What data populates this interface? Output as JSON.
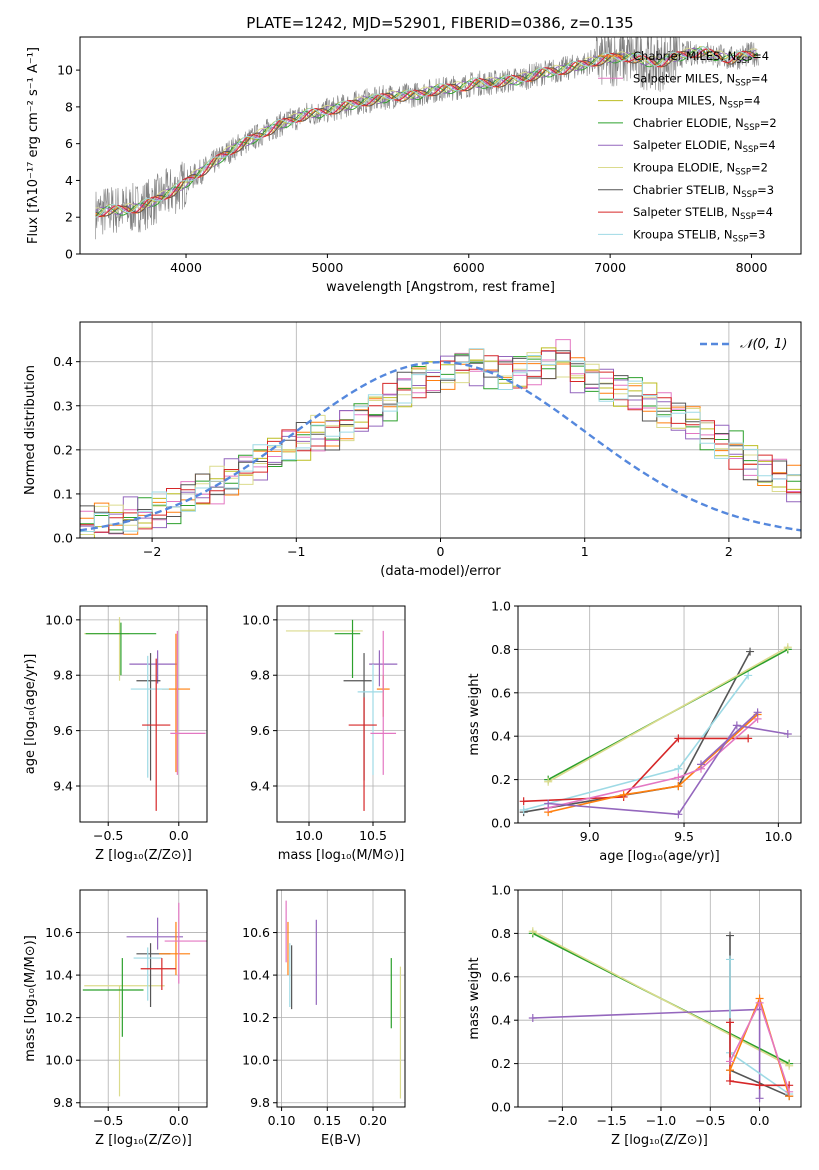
{
  "figure_title": "PLATE=1242, MJD=52901, FIBERID=0386, z=0.135",
  "colors": {
    "chabrier_miles": "#ff7f0e",
    "salpeter_miles": "#e377c2",
    "kroupa_miles": "#bcbd22",
    "chabrier_elodie": "#2ca02c",
    "salpeter_elodie": "#9467bd",
    "kroupa_elodie": "#dbdb8d",
    "chabrier_stelib": "#555555",
    "salpeter_stelib": "#d62728",
    "kroupa_stelib": "#9edae5",
    "data": "#808080",
    "normal": "#5588dd"
  },
  "chart_data": [
    {
      "id": "spectrum",
      "type": "line",
      "title": "PLATE=1242, MJD=52901, FIBERID=0386, z=0.135",
      "xlabel": "wavelength [Angstrom, rest frame]",
      "ylabel": "Flux [fλ10⁻¹⁷ erg cm⁻² s⁻¹ A⁻¹]",
      "xlim": [
        3250,
        8350
      ],
      "ylim": [
        0,
        11.8
      ],
      "xticks": [
        4000,
        5000,
        6000,
        7000,
        8000
      ],
      "yticks": [
        0,
        2,
        4,
        6,
        8,
        10
      ],
      "grid": false,
      "legend_position": "top-right",
      "data_x": [
        3360,
        3450,
        3550,
        3650,
        3750,
        3850,
        3950,
        4050,
        4150,
        4250,
        4350,
        4450,
        4550,
        4650,
        4750,
        4850,
        4950,
        5050,
        5150,
        5250,
        5350,
        5450,
        5550,
        5650,
        5750,
        5850,
        5950,
        6050,
        6150,
        6250,
        6350,
        6450,
        6550,
        6650,
        6750,
        6850,
        6950,
        7050,
        7150,
        7250,
        7350,
        7450,
        7550,
        7650,
        7750,
        7850,
        7950,
        8050
      ],
      "data_y": [
        2.2,
        2.4,
        2.4,
        2.5,
        2.8,
        3.2,
        3.6,
        4.2,
        4.7,
        5.3,
        5.8,
        6.2,
        6.6,
        7.0,
        7.3,
        7.6,
        7.7,
        7.9,
        8.1,
        8.3,
        8.4,
        8.6,
        8.6,
        8.7,
        8.9,
        9.0,
        9.1,
        9.3,
        9.3,
        9.4,
        9.5,
        9.7,
        9.9,
        10.0,
        10.2,
        10.4,
        10.6,
        10.7,
        10.7,
        10.5,
        10.4,
        10.7,
        10.9,
        11.0,
        10.8,
        10.6,
        10.8,
        10.9
      ],
      "series": [
        {
          "name": "Chabrier MILES, N_SSP=4",
          "label_main": "Chabrier MILES, N",
          "label_sub": "SSP",
          "label_end": "=4",
          "color_key": "chabrier_miles"
        },
        {
          "name": "Salpeter MILES, N_SSP=4",
          "label_main": "Salpeter MILES, N",
          "label_sub": "SSP",
          "label_end": "=4",
          "color_key": "salpeter_miles"
        },
        {
          "name": "Kroupa MILES, N_SSP=4",
          "label_main": "Kroupa MILES, N",
          "label_sub": "SSP",
          "label_end": "=4",
          "color_key": "kroupa_miles"
        },
        {
          "name": "Chabrier ELODIE, N_SSP=2",
          "label_main": "Chabrier ELODIE, N",
          "label_sub": "SSP",
          "label_end": "=2",
          "color_key": "chabrier_elodie"
        },
        {
          "name": "Salpeter ELODIE, N_SSP=4",
          "label_main": "Salpeter ELODIE, N",
          "label_sub": "SSP",
          "label_end": "=4",
          "color_key": "salpeter_elodie"
        },
        {
          "name": "Kroupa ELODIE, N_SSP=2",
          "label_main": "Kroupa ELODIE, N",
          "label_sub": "SSP",
          "label_end": "=2",
          "color_key": "kroupa_elodie"
        },
        {
          "name": "Chabrier STELIB, N_SSP=3",
          "label_main": "Chabrier STELIB, N",
          "label_sub": "SSP",
          "label_end": "=3",
          "color_key": "chabrier_stelib"
        },
        {
          "name": "Salpeter STELIB, N_SSP=4",
          "label_main": "Salpeter STELIB, N",
          "label_sub": "SSP",
          "label_end": "=4",
          "color_key": "salpeter_stelib"
        },
        {
          "name": "Kroupa STELIB, N_SSP=3",
          "label_main": "Kroupa STELIB, N",
          "label_sub": "SSP",
          "label_end": "=3",
          "color_key": "kroupa_stelib"
        }
      ]
    },
    {
      "id": "residuals",
      "type": "line",
      "xlabel": "(data-model)/error",
      "ylabel": "Normed distribution",
      "xlim": [
        -2.5,
        2.5
      ],
      "ylim": [
        0,
        0.49
      ],
      "xticks": [
        -2,
        -1,
        0,
        1,
        2
      ],
      "yticks": [
        0.0,
        0.1,
        0.2,
        0.3,
        0.4
      ],
      "grid": true,
      "legend_position": "top-right",
      "legend": "𝒩(0, 1)",
      "bin_width": 0.1,
      "bin_start": -2.5,
      "histogram": [
        0.03,
        0.04,
        0.04,
        0.05,
        0.05,
        0.06,
        0.07,
        0.09,
        0.11,
        0.12,
        0.14,
        0.16,
        0.17,
        0.19,
        0.21,
        0.22,
        0.24,
        0.24,
        0.26,
        0.27,
        0.29,
        0.31,
        0.34,
        0.36,
        0.37,
        0.38,
        0.39,
        0.39,
        0.38,
        0.38,
        0.38,
        0.39,
        0.4,
        0.41,
        0.37,
        0.36,
        0.35,
        0.34,
        0.33,
        0.31,
        0.29,
        0.27,
        0.26,
        0.24,
        0.22,
        0.2,
        0.17,
        0.15,
        0.14,
        0.12,
        0.1,
        0.09,
        0.08,
        0.07,
        0.06,
        0.05,
        0.04,
        0.03,
        0.03,
        0.02,
        0.02,
        0.02
      ],
      "normal_mean": 0,
      "normal_sigma": 1
    },
    {
      "id": "age_vs_z",
      "type": "scatter",
      "xlabel": "Z [log₁₀(Z/Z⊙)]",
      "ylabel": "age  [log₁₀(age/yr)]",
      "xlim": [
        -0.7,
        0.2
      ],
      "ylim": [
        9.27,
        10.05
      ],
      "xticks": [
        -0.5,
        0.0
      ],
      "yticks": [
        9.4,
        9.6,
        9.8,
        10.0
      ],
      "grid": true,
      "points": [
        {
          "color_key": "kroupa_elodie",
          "x": -0.42,
          "y": 9.95,
          "xerr": [
            0.25,
            0.07
          ],
          "yerr": [
            0.17,
            0.06
          ]
        },
        {
          "color_key": "chabrier_elodie",
          "x": -0.41,
          "y": 9.95,
          "xerr": [
            0.25,
            0.25
          ],
          "yerr": [
            0.15,
            0.04
          ]
        },
        {
          "color_key": "salpeter_elodie",
          "x": -0.15,
          "y": 9.84,
          "xerr": [
            0.2,
            0.14
          ],
          "yerr": [
            0.07,
            0.05
          ]
        },
        {
          "color_key": "chabrier_stelib",
          "x": -0.2,
          "y": 9.78,
          "xerr": [
            0.1,
            0.07
          ],
          "yerr": [
            0.36,
            0.1
          ]
        },
        {
          "color_key": "chabrier_miles",
          "x": -0.02,
          "y": 9.75,
          "xerr": [
            0.1,
            0.1
          ],
          "yerr": [
            0.3,
            0.2
          ]
        },
        {
          "color_key": "kroupa_stelib",
          "x": -0.22,
          "y": 9.75,
          "xerr": [
            0.12,
            0.15
          ],
          "yerr": [
            0.32,
            0.12
          ]
        },
        {
          "color_key": "salpeter_stelib",
          "x": -0.16,
          "y": 9.62,
          "xerr": [
            0.1,
            0.1
          ],
          "yerr": [
            0.31,
            0.24
          ]
        },
        {
          "color_key": "salpeter_miles",
          "x": -0.01,
          "y": 9.59,
          "xerr": [
            0.05,
            0.2
          ],
          "yerr": [
            0.15,
            0.37
          ]
        }
      ]
    },
    {
      "id": "age_vs_mass",
      "type": "scatter",
      "xlabel": "mass [log₁₀(M/M⊙)]",
      "xlim": [
        9.75,
        10.75
      ],
      "ylim": [
        9.27,
        10.05
      ],
      "xticks": [
        10.0,
        10.5
      ],
      "yticks": [
        9.4,
        9.6,
        9.8,
        10.0
      ],
      "grid": true,
      "points": [
        {
          "color_key": "kroupa_elodie",
          "x": 10.32,
          "y": 9.96,
          "xerr": [
            0.5,
            0.1
          ],
          "yerr": [
            0.0,
            0.0
          ]
        },
        {
          "color_key": "chabrier_elodie",
          "x": 10.34,
          "y": 9.95,
          "xerr": [
            0.14,
            0.06
          ],
          "yerr": [
            0.16,
            0.05
          ]
        },
        {
          "color_key": "salpeter_elodie",
          "x": 10.55,
          "y": 9.84,
          "xerr": [
            0.08,
            0.14
          ],
          "yerr": [
            0.08,
            0.05
          ]
        },
        {
          "color_key": "chabrier_stelib",
          "x": 10.43,
          "y": 9.78,
          "xerr": [
            0.16,
            0.06
          ],
          "yerr": [
            0.36,
            0.1
          ]
        },
        {
          "color_key": "chabrier_miles",
          "x": 10.58,
          "y": 9.75,
          "xerr": [
            0.05,
            0.05
          ],
          "yerr": [
            0.1,
            0.05
          ]
        },
        {
          "color_key": "kroupa_stelib",
          "x": 10.5,
          "y": 9.74,
          "xerr": [
            0.12,
            0.08
          ],
          "yerr": [
            0.3,
            0.1
          ]
        },
        {
          "color_key": "salpeter_stelib",
          "x": 10.43,
          "y": 9.62,
          "xerr": [
            0.12,
            0.1
          ],
          "yerr": [
            0.31,
            0.1
          ]
        },
        {
          "color_key": "salpeter_miles",
          "x": 10.58,
          "y": 9.59,
          "xerr": [
            0.1,
            0.1
          ],
          "yerr": [
            0.15,
            0.37
          ]
        }
      ]
    },
    {
      "id": "massweight_vs_age",
      "type": "line",
      "xlabel": "age  [log₁₀(age/yr)]",
      "ylabel": "mass weight",
      "xlim": [
        8.62,
        10.12
      ],
      "ylim": [
        0,
        1.0
      ],
      "xticks": [
        9.0,
        9.5,
        10.0
      ],
      "yticks": [
        0.0,
        0.2,
        0.4,
        0.6,
        0.8,
        1.0
      ],
      "grid": true,
      "series": [
        {
          "color_key": "chabrier_stelib",
          "x": [
            8.65,
            9.47,
            9.85
          ],
          "y": [
            0.05,
            0.17,
            0.79
          ]
        },
        {
          "color_key": "kroupa_stelib",
          "x": [
            8.65,
            9.47,
            9.84
          ],
          "y": [
            0.06,
            0.25,
            0.68
          ]
        },
        {
          "color_key": "salpeter_stelib",
          "x": [
            8.65,
            9.18,
            9.47,
            9.84
          ],
          "y": [
            0.1,
            0.12,
            0.39,
            0.39
          ]
        },
        {
          "color_key": "chabrier_miles",
          "x": [
            8.78,
            9.18,
            9.47,
            9.89
          ],
          "y": [
            0.05,
            0.13,
            0.17,
            0.5
          ]
        },
        {
          "color_key": "salpeter_miles",
          "x": [
            8.78,
            9.47,
            9.59,
            9.89
          ],
          "y": [
            0.07,
            0.21,
            0.25,
            0.48
          ]
        },
        {
          "color_key": "salpeter_elodie",
          "x": [
            8.78,
            9.47,
            9.78,
            10.05
          ],
          "y": [
            0.09,
            0.04,
            0.45,
            0.41
          ]
        },
        {
          "color_key": "chabrier_elodie",
          "x": [
            8.78,
            10.05
          ],
          "y": [
            0.2,
            0.8
          ]
        },
        {
          "color_key": "kroupa_elodie",
          "x": [
            8.78,
            10.05
          ],
          "y": [
            0.19,
            0.81
          ]
        },
        {
          "color_key": "salpeter_elodie",
          "x": [
            9.59,
            9.89
          ],
          "y": [
            0.27,
            0.51
          ]
        }
      ]
    },
    {
      "id": "mass_vs_z",
      "type": "scatter",
      "xlabel": "Z [log₁₀(Z/Z⊙)]",
      "ylabel": "mass [log₁₀(M/M⊙)]",
      "xlim": [
        -0.7,
        0.2
      ],
      "ylim": [
        9.78,
        10.8
      ],
      "xticks": [
        -0.5,
        0.0
      ],
      "yticks": [
        9.8,
        10.0,
        10.2,
        10.4,
        10.6
      ],
      "grid": true,
      "points": [
        {
          "color_key": "kroupa_elodie",
          "x": -0.42,
          "y": 10.35,
          "xerr": [
            0.25,
            0.32
          ],
          "yerr": [
            0.52,
            0.0
          ]
        },
        {
          "color_key": "chabrier_elodie",
          "x": -0.4,
          "y": 10.33,
          "xerr": [
            0.28,
            0.15
          ],
          "yerr": [
            0.22,
            0.15
          ]
        },
        {
          "color_key": "salpeter_elodie",
          "x": -0.15,
          "y": 10.58,
          "xerr": [
            0.22,
            0.18
          ],
          "yerr": [
            0.06,
            0.09
          ]
        },
        {
          "color_key": "chabrier_stelib",
          "x": -0.2,
          "y": 10.5,
          "xerr": [
            0.1,
            0.14
          ],
          "yerr": [
            0.25,
            0.05
          ]
        },
        {
          "color_key": "chabrier_miles",
          "x": -0.02,
          "y": 10.5,
          "xerr": [
            0.12,
            0.1
          ],
          "yerr": [
            0.1,
            0.15
          ]
        },
        {
          "color_key": "kroupa_stelib",
          "x": -0.22,
          "y": 10.48,
          "xerr": [
            0.1,
            0.1
          ],
          "yerr": [
            0.2,
            0.05
          ]
        },
        {
          "color_key": "salpeter_stelib",
          "x": -0.12,
          "y": 10.43,
          "xerr": [
            0.15,
            0.1
          ],
          "yerr": [
            0.1,
            0.05
          ]
        },
        {
          "color_key": "salpeter_miles",
          "x": 0.0,
          "y": 10.56,
          "xerr": [
            0.1,
            0.2
          ],
          "yerr": [
            0.2,
            0.18
          ]
        }
      ]
    },
    {
      "id": "mass_vs_ebv",
      "type": "scatter",
      "xlabel": "E(B-V)",
      "xlim": [
        0.095,
        0.235
      ],
      "ylim": [
        9.78,
        10.8
      ],
      "xticks": [
        0.1,
        0.15,
        0.2
      ],
      "yticks": [
        9.8,
        10.0,
        10.2,
        10.4,
        10.6
      ],
      "grid": true,
      "points": [
        {
          "color_key": "salpeter_miles",
          "x": 0.105,
          "y": 10.6,
          "xerr": [
            0,
            0
          ],
          "yerr": [
            0.14,
            0.15
          ]
        },
        {
          "color_key": "chabrier_miles",
          "x": 0.107,
          "y": 10.5,
          "xerr": [
            0,
            0
          ],
          "yerr": [
            0.1,
            0.15
          ]
        },
        {
          "color_key": "kroupa_stelib",
          "x": 0.109,
          "y": 10.45,
          "xerr": [
            0,
            0
          ],
          "yerr": [
            0.2,
            0.1
          ]
        },
        {
          "color_key": "chabrier_stelib",
          "x": 0.111,
          "y": 10.4,
          "xerr": [
            0,
            0
          ],
          "yerr": [
            0.16,
            0.14
          ]
        },
        {
          "color_key": "salpeter_elodie",
          "x": 0.138,
          "y": 10.46,
          "xerr": [
            0,
            0
          ],
          "yerr": [
            0.2,
            0.2
          ]
        },
        {
          "color_key": "chabrier_elodie",
          "x": 0.22,
          "y": 10.35,
          "xerr": [
            0,
            0
          ],
          "yerr": [
            0.2,
            0.13
          ]
        },
        {
          "color_key": "kroupa_elodie",
          "x": 0.23,
          "y": 10.13,
          "xerr": [
            0,
            0
          ],
          "yerr": [
            0.31,
            0.31
          ]
        }
      ]
    },
    {
      "id": "massweight_vs_z",
      "type": "line",
      "xlabel": "Z [log₁₀(Z/Z⊙)]",
      "ylabel": "mass weight",
      "xlim": [
        -2.45,
        0.42
      ],
      "ylim": [
        0,
        1.0
      ],
      "xticks": [
        -2.0,
        -1.5,
        -1.0,
        -0.5,
        0.0
      ],
      "yticks": [
        0.0,
        0.2,
        0.4,
        0.6,
        0.8,
        1.0
      ],
      "grid": true,
      "series": [
        {
          "color_key": "chabrier_elodie",
          "x": [
            -2.3,
            0.3
          ],
          "y": [
            0.8,
            0.2
          ]
        },
        {
          "color_key": "kroupa_elodie",
          "x": [
            -2.3,
            0.3
          ],
          "y": [
            0.81,
            0.19
          ]
        },
        {
          "color_key": "salpeter_elodie",
          "x": [
            -2.3,
            0.0,
            0.0
          ],
          "y": [
            0.41,
            0.45,
            0.04
          ]
        },
        {
          "color_key": "chabrier_stelib",
          "x": [
            -0.3,
            -0.3,
            0.3
          ],
          "y": [
            0.79,
            0.17,
            0.05
          ]
        },
        {
          "color_key": "kroupa_stelib",
          "x": [
            -0.3,
            -0.3,
            0.3
          ],
          "y": [
            0.68,
            0.25,
            0.06
          ]
        },
        {
          "color_key": "salpeter_stelib",
          "x": [
            -0.3,
            -0.3,
            0.0,
            0.3
          ],
          "y": [
            0.39,
            0.12,
            0.1,
            0.1
          ]
        },
        {
          "color_key": "chabrier_miles",
          "x": [
            -0.3,
            0.0,
            0.3
          ],
          "y": [
            0.17,
            0.5,
            0.05
          ]
        },
        {
          "color_key": "salpeter_miles",
          "x": [
            -0.3,
            0.0,
            0.3
          ],
          "y": [
            0.21,
            0.48,
            0.07
          ]
        }
      ]
    }
  ]
}
